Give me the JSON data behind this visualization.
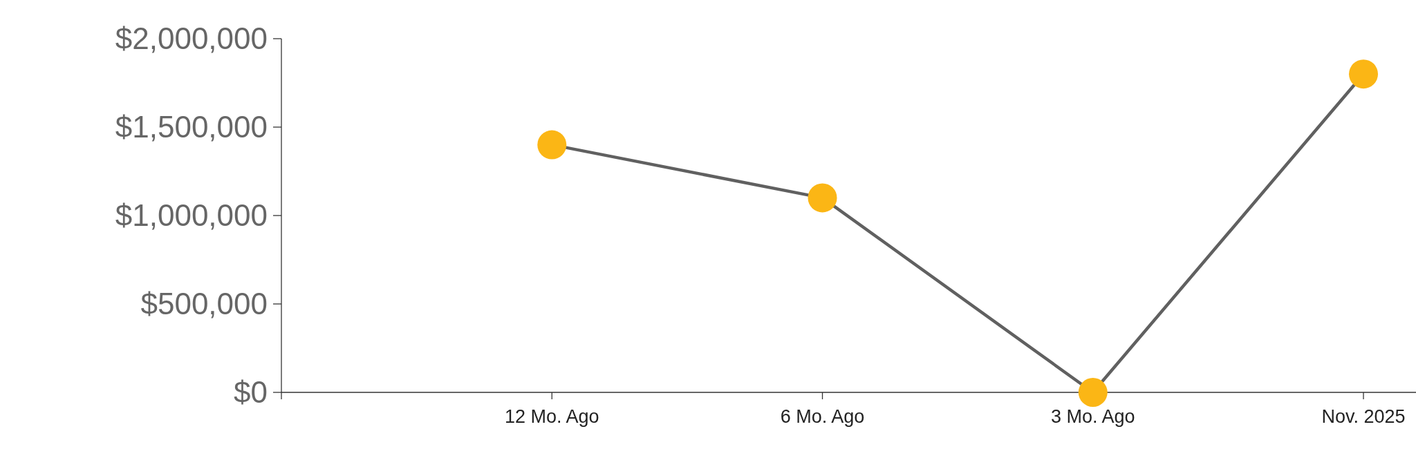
{
  "chart_data": {
    "type": "line",
    "categories": [
      null,
      "12 Mo. Ago",
      "6 Mo. Ago",
      "3 Mo. Ago",
      "Nov. 2025"
    ],
    "series": [
      {
        "color": "#606060",
        "values": [
          null,
          1400000,
          1100000,
          0,
          1800000
        ]
      }
    ],
    "marker": "circle",
    "ylim": [
      0,
      2000000
    ],
    "yticks": [
      {
        "value": 0,
        "label": "$0"
      },
      {
        "value": 500000,
        "label": "$500,000"
      },
      {
        "value": 1000000,
        "label": "$1,000,000"
      },
      {
        "value": 1500000,
        "label": "$1,500,000"
      },
      {
        "value": 2000000,
        "label": "$2,000,000"
      }
    ],
    "grid": false
  }
}
